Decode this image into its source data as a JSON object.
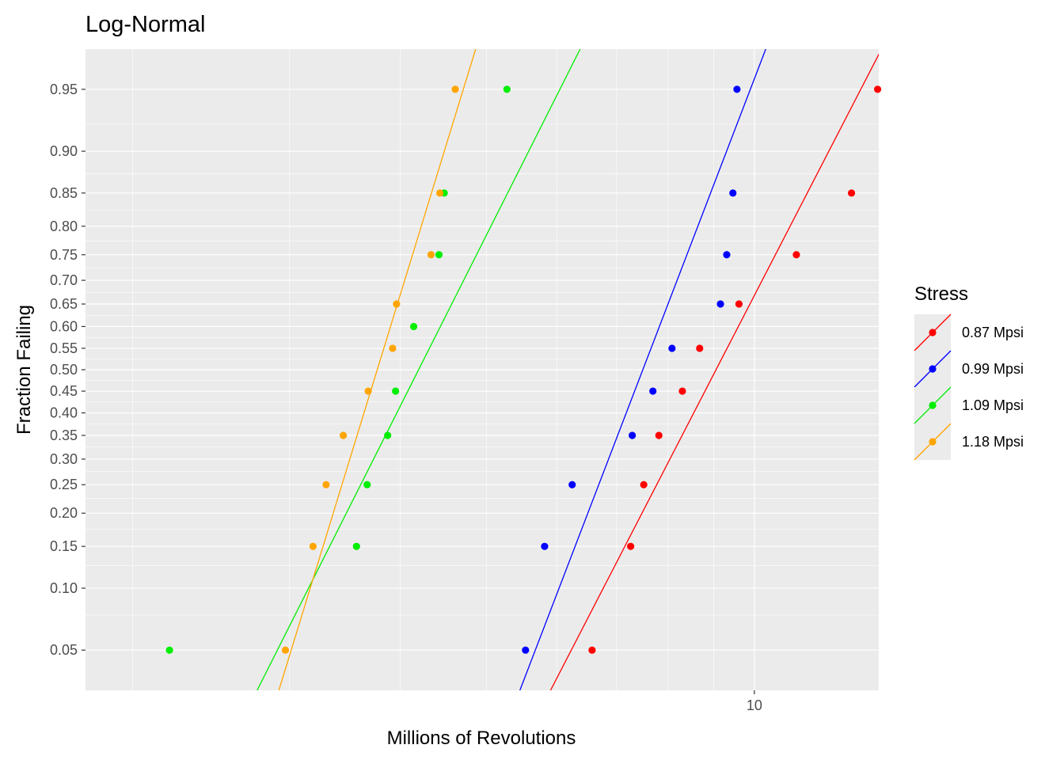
{
  "chart_data": {
    "type": "scatter",
    "title": "Log-Normal",
    "xlabel": "Millions of Revolutions",
    "ylabel": "Fraction Failing",
    "x_scale": "log",
    "y_scale": "probit",
    "xlim": [
      1.77,
      13.8
    ],
    "ylim": [
      0.03,
      0.97
    ],
    "x_ticks": [
      10
    ],
    "x_tick_labels": [
      "10"
    ],
    "y_ticks": [
      0.05,
      0.1,
      0.15,
      0.2,
      0.25,
      0.3,
      0.35,
      0.4,
      0.45,
      0.5,
      0.55,
      0.6,
      0.65,
      0.7,
      0.75,
      0.8,
      0.85,
      0.9,
      0.95
    ],
    "y_tick_labels": [
      "0.05",
      "0.10",
      "0.15",
      "0.20",
      "0.25",
      "0.30",
      "0.35",
      "0.40",
      "0.45",
      "0.50",
      "0.55",
      "0.60",
      "0.65",
      "0.70",
      "0.75",
      "0.80",
      "0.85",
      "0.90",
      "0.95"
    ],
    "grid": true,
    "legend": {
      "title": "Stress",
      "position": "right"
    },
    "series": [
      {
        "name": "0.87 Mpsi",
        "color": "#ff0000",
        "points": [
          [
            6.57,
            0.05
          ],
          [
            7.26,
            0.15
          ],
          [
            7.51,
            0.25
          ],
          [
            7.81,
            0.35
          ],
          [
            8.3,
            0.45
          ],
          [
            8.68,
            0.55
          ],
          [
            9.61,
            0.65
          ],
          [
            11.15,
            0.75
          ],
          [
            12.86,
            0.85
          ],
          [
            13.76,
            0.95
          ]
        ],
        "fit": [
          [
            5.9,
            0.03
          ],
          [
            13.9,
            0.97
          ]
        ]
      },
      {
        "name": "0.99 Mpsi",
        "color": "#0000ff",
        "points": [
          [
            5.53,
            0.05
          ],
          [
            5.81,
            0.15
          ],
          [
            6.24,
            0.25
          ],
          [
            7.29,
            0.35
          ],
          [
            7.69,
            0.45
          ],
          [
            8.08,
            0.55
          ],
          [
            9.16,
            0.65
          ],
          [
            9.31,
            0.75
          ],
          [
            9.46,
            0.85
          ],
          [
            9.56,
            0.95
          ]
        ],
        "fit": [
          [
            5.45,
            0.03
          ],
          [
            10.3,
            0.97
          ]
        ]
      },
      {
        "name": "1.09 Mpsi",
        "color": "#00ee00",
        "points": [
          [
            2.2,
            0.05
          ],
          [
            3.57,
            0.15
          ],
          [
            3.67,
            0.25
          ],
          [
            3.87,
            0.35
          ],
          [
            3.95,
            0.45
          ],
          [
            4.14,
            0.6
          ],
          [
            4.42,
            0.75
          ],
          [
            4.48,
            0.85
          ],
          [
            5.27,
            0.95
          ]
        ],
        "fit": [
          [
            2.76,
            0.03
          ],
          [
            6.37,
            0.97
          ]
        ]
      },
      {
        "name": "1.18 Mpsi",
        "color": "#ffa500",
        "points": [
          [
            2.97,
            0.05
          ],
          [
            3.19,
            0.15
          ],
          [
            3.3,
            0.25
          ],
          [
            3.45,
            0.35
          ],
          [
            3.68,
            0.45
          ],
          [
            3.92,
            0.55
          ],
          [
            3.96,
            0.65
          ],
          [
            4.33,
            0.75
          ],
          [
            4.43,
            0.85
          ],
          [
            4.61,
            0.95
          ]
        ],
        "fit": [
          [
            2.92,
            0.03
          ],
          [
            4.86,
            0.97
          ]
        ]
      }
    ]
  }
}
